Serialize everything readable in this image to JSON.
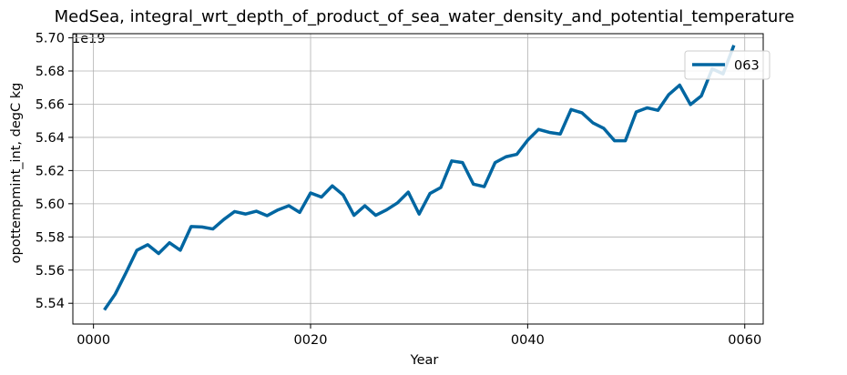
{
  "chart_data": {
    "type": "line",
    "title": "MedSea, integral_wrt_depth_of_product_of_sea_water_density_and_potential_temperature",
    "xlabel": "Year",
    "ylabel": "opottempmint_int, degC kg",
    "offset_text": "1e19",
    "xlim": [
      -1.9,
      61.7
    ],
    "ylim": [
      5.5275,
      5.7025
    ],
    "x_ticks": [
      0,
      20,
      40,
      60
    ],
    "x_tick_labels": [
      "0000",
      "0020",
      "0040",
      "0060"
    ],
    "y_ticks": [
      5.54,
      5.56,
      5.58,
      5.6,
      5.62,
      5.64,
      5.66,
      5.68,
      5.7
    ],
    "y_tick_labels": [
      "5.54",
      "5.56",
      "5.58",
      "5.60",
      "5.62",
      "5.64",
      "5.66",
      "5.68",
      "5.70"
    ],
    "grid": true,
    "legend_position": "upper right",
    "x": [
      1,
      2,
      3,
      4,
      5,
      6,
      7,
      8,
      9,
      10,
      11,
      12,
      13,
      14,
      15,
      16,
      17,
      18,
      19,
      20,
      21,
      22,
      23,
      24,
      25,
      26,
      27,
      28,
      29,
      30,
      31,
      32,
      33,
      34,
      35,
      36,
      37,
      38,
      39,
      40,
      41,
      42,
      43,
      44,
      45,
      46,
      47,
      48,
      49,
      50,
      51,
      52,
      53,
      54,
      55,
      56,
      57,
      58,
      59
    ],
    "series": [
      {
        "name": "063",
        "color": "#0066a1",
        "values": [
          5.536,
          5.5455,
          5.5585,
          5.572,
          5.5753,
          5.57,
          5.5765,
          5.572,
          5.5863,
          5.586,
          5.5848,
          5.5905,
          5.5953,
          5.5938,
          5.5955,
          5.5928,
          5.5963,
          5.5988,
          5.5948,
          5.6065,
          5.604,
          5.6108,
          5.6053,
          5.593,
          5.5988,
          5.593,
          5.5963,
          5.6005,
          5.607,
          5.5938,
          5.6062,
          5.6098,
          5.6258,
          5.6248,
          5.6118,
          5.6103,
          5.6248,
          5.6283,
          5.6298,
          5.6383,
          5.6448,
          5.643,
          5.642,
          5.6568,
          5.6548,
          5.6488,
          5.6455,
          5.638,
          5.638,
          5.6553,
          5.6578,
          5.6563,
          5.6658,
          5.6715,
          5.6598,
          5.665,
          5.6813,
          5.6783,
          5.6955
        ]
      }
    ]
  }
}
